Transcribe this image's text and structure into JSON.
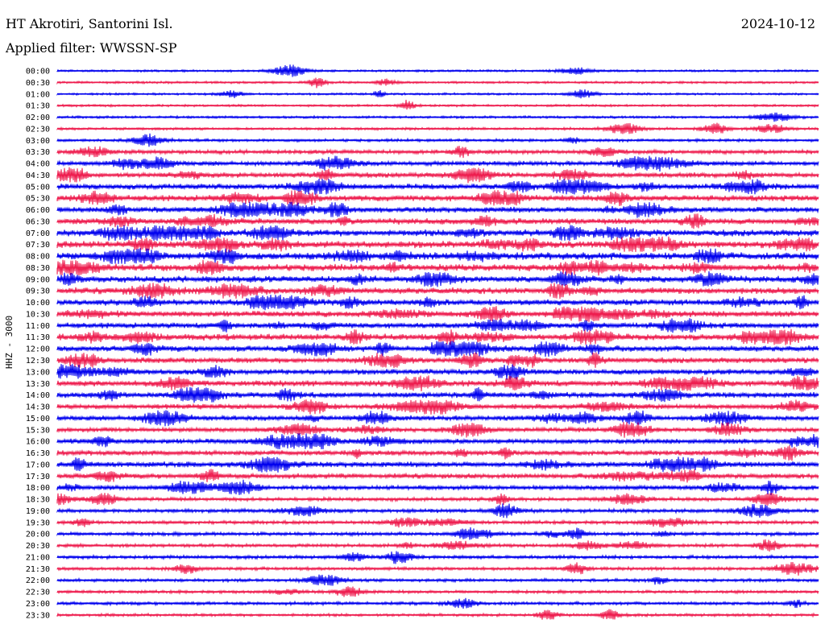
{
  "header": {
    "station": "HT Akrotiri, Santorini Isl.",
    "filter": "Applied filter: WWSSN-SP",
    "date": "2024-10-12"
  },
  "chart_data": {
    "type": "line",
    "title": "HT Akrotiri, Santorini Isl.",
    "ylabel": "HHZ - 3000",
    "colors": [
      "#0000ee",
      "#ee1c4e"
    ],
    "traces": [
      {
        "time": "00:00",
        "level": 0.05
      },
      {
        "time": "00:30",
        "level": 0.06
      },
      {
        "time": "01:00",
        "level": 0.05
      },
      {
        "time": "01:30",
        "level": 0.06
      },
      {
        "time": "02:00",
        "level": 0.07
      },
      {
        "time": "02:30",
        "level": 0.09
      },
      {
        "time": "03:00",
        "level": 0.12
      },
      {
        "time": "03:30",
        "level": 0.25
      },
      {
        "time": "04:00",
        "level": 0.3
      },
      {
        "time": "04:30",
        "level": 0.35
      },
      {
        "time": "05:00",
        "level": 0.4
      },
      {
        "time": "05:30",
        "level": 0.45
      },
      {
        "time": "06:00",
        "level": 0.42
      },
      {
        "time": "06:30",
        "level": 0.45
      },
      {
        "time": "07:00",
        "level": 0.5
      },
      {
        "time": "07:30",
        "level": 0.55
      },
      {
        "time": "08:00",
        "level": 0.6
      },
      {
        "time": "08:30",
        "level": 0.55
      },
      {
        "time": "09:00",
        "level": 0.5
      },
      {
        "time": "09:30",
        "level": 0.5
      },
      {
        "time": "10:00",
        "level": 0.45
      },
      {
        "time": "10:30",
        "level": 0.45
      },
      {
        "time": "11:00",
        "level": 0.4
      },
      {
        "time": "11:30",
        "level": 0.5
      },
      {
        "time": "12:00",
        "level": 0.45
      },
      {
        "time": "12:30",
        "level": 0.4
      },
      {
        "time": "13:00",
        "level": 0.4
      },
      {
        "time": "13:30",
        "level": 0.45
      },
      {
        "time": "14:00",
        "level": 0.4
      },
      {
        "time": "14:30",
        "level": 0.35
      },
      {
        "time": "15:00",
        "level": 0.35
      },
      {
        "time": "15:30",
        "level": 0.3
      },
      {
        "time": "16:00",
        "level": 0.35
      },
      {
        "time": "16:30",
        "level": 0.35
      },
      {
        "time": "17:00",
        "level": 0.4
      },
      {
        "time": "17:30",
        "level": 0.35
      },
      {
        "time": "18:00",
        "level": 0.3
      },
      {
        "time": "18:30",
        "level": 0.2
      },
      {
        "time": "19:00",
        "level": 0.22
      },
      {
        "time": "19:30",
        "level": 0.18
      },
      {
        "time": "20:00",
        "level": 0.2
      },
      {
        "time": "20:30",
        "level": 0.18
      },
      {
        "time": "21:00",
        "level": 0.18
      },
      {
        "time": "21:30",
        "level": 0.16
      },
      {
        "time": "22:00",
        "level": 0.15
      },
      {
        "time": "22:30",
        "level": 0.14
      },
      {
        "time": "23:00",
        "level": 0.16
      },
      {
        "time": "23:30",
        "level": 0.12
      }
    ]
  }
}
